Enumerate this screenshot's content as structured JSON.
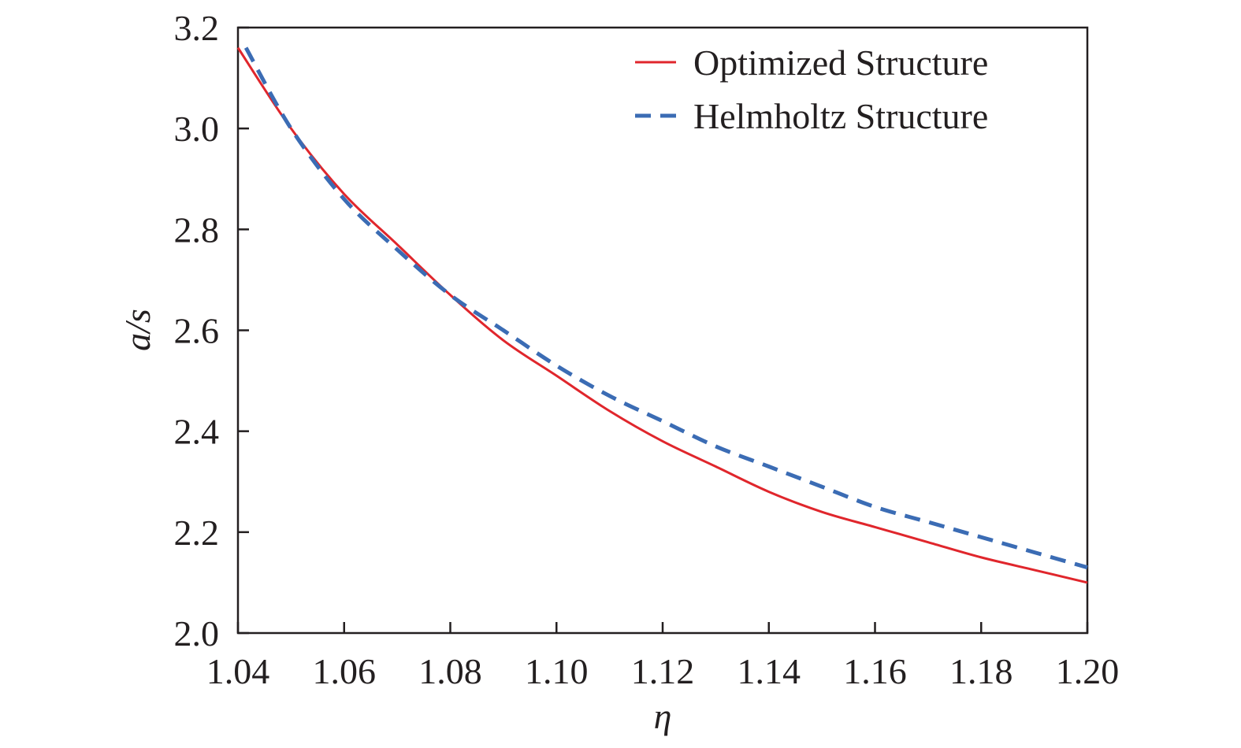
{
  "chart_data": {
    "type": "line",
    "title": "",
    "xlabel": "η",
    "ylabel": "a/s",
    "xlim": [
      1.04,
      1.2
    ],
    "ylim": [
      2.0,
      3.2
    ],
    "xticks": [
      "1.04",
      "1.06",
      "1.08",
      "1.10",
      "1.12",
      "1.14",
      "1.16",
      "1.18",
      "1.20"
    ],
    "yticks": [
      "2.0",
      "2.2",
      "2.4",
      "2.6",
      "2.8",
      "3.0",
      "3.2"
    ],
    "grid": false,
    "legend_position": "top-right",
    "series": [
      {
        "name": "Optimized Structure",
        "color": "#e0262c",
        "style": "solid",
        "x": [
          1.04,
          1.05,
          1.06,
          1.07,
          1.08,
          1.09,
          1.1,
          1.11,
          1.12,
          1.13,
          1.14,
          1.15,
          1.16,
          1.17,
          1.18,
          1.19,
          1.2
        ],
        "y": [
          3.16,
          3.0,
          2.87,
          2.77,
          2.67,
          2.58,
          2.51,
          2.44,
          2.38,
          2.33,
          2.28,
          2.24,
          2.21,
          2.18,
          2.15,
          2.125,
          2.1
        ]
      },
      {
        "name": "Helmholtz Structure",
        "color": "#3b6cb4",
        "style": "dashed",
        "x": [
          1.0415,
          1.05,
          1.06,
          1.07,
          1.08,
          1.09,
          1.1,
          1.11,
          1.12,
          1.13,
          1.14,
          1.15,
          1.16,
          1.17,
          1.18,
          1.19,
          1.2
        ],
        "y": [
          3.16,
          3.0,
          2.86,
          2.76,
          2.67,
          2.6,
          2.53,
          2.47,
          2.42,
          2.37,
          2.33,
          2.29,
          2.25,
          2.22,
          2.19,
          2.16,
          2.13
        ]
      }
    ]
  }
}
